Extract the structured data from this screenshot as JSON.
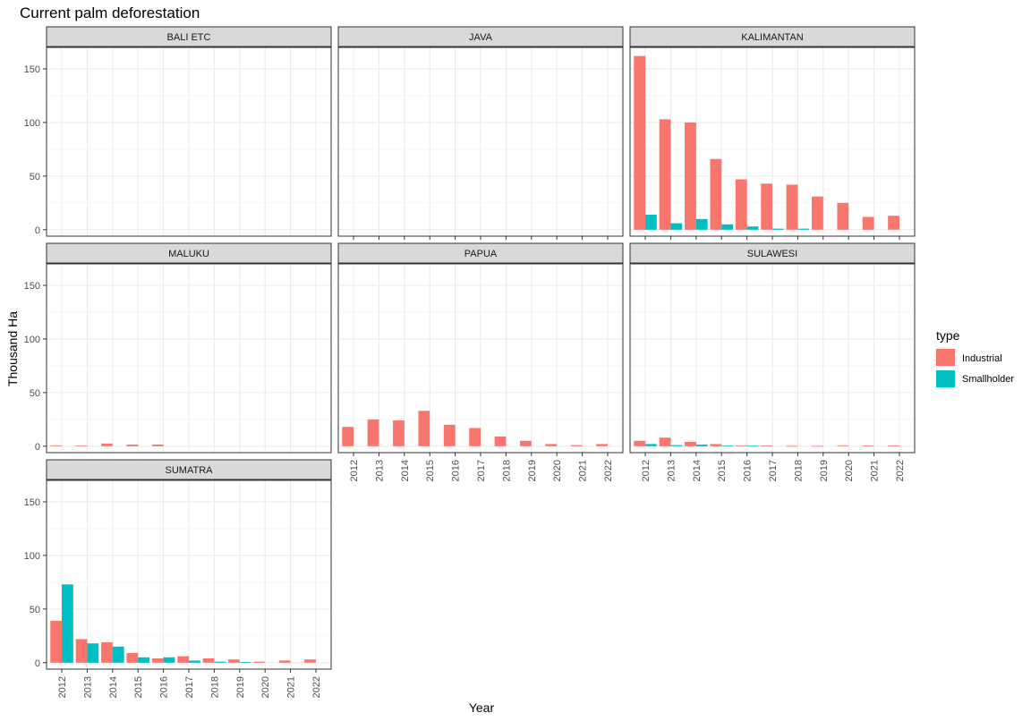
{
  "chart_data": {
    "type": "bar",
    "title": "Current palm deforestation",
    "xlabel": "Year",
    "ylabel": "Thousand Ha",
    "ylim": [
      -6,
      170
    ],
    "yticks": [
      0,
      50,
      100,
      150
    ],
    "x": [
      "2012",
      "2013",
      "2014",
      "2015",
      "2016",
      "2017",
      "2018",
      "2019",
      "2020",
      "2021",
      "2022"
    ],
    "grid": true,
    "legend": {
      "title": "type",
      "position": "right",
      "entries": [
        {
          "name": "Industrial",
          "color": "#F8766D"
        },
        {
          "name": "Smallholder",
          "color": "#00BFC4"
        }
      ]
    },
    "facets": [
      {
        "name": "BALI ETC",
        "series": [
          {
            "name": "Industrial",
            "values": [
              0,
              0,
              0,
              0,
              0,
              0,
              0,
              0,
              0,
              0,
              0
            ]
          },
          {
            "name": "Smallholder",
            "values": [
              0,
              0,
              0,
              0,
              0,
              0,
              0,
              0,
              0,
              0,
              0
            ]
          }
        ]
      },
      {
        "name": "JAVA",
        "series": [
          {
            "name": "Industrial",
            "values": [
              0,
              0,
              0,
              0,
              0,
              0,
              0,
              0,
              0,
              0,
              0
            ]
          },
          {
            "name": "Smallholder",
            "values": [
              0,
              0,
              0,
              0,
              0,
              0,
              0,
              0,
              0,
              0,
              0
            ]
          }
        ]
      },
      {
        "name": "KALIMANTAN",
        "series": [
          {
            "name": "Industrial",
            "values": [
              162,
              103,
              100,
              66,
              47,
              43,
              42,
              31,
              25,
              12,
              13
            ]
          },
          {
            "name": "Smallholder",
            "values": [
              14,
              6,
              10,
              5,
              3,
              1,
              1,
              0,
              0,
              0,
              0
            ]
          }
        ]
      },
      {
        "name": "MALUKU",
        "series": [
          {
            "name": "Industrial",
            "values": [
              0.5,
              0.5,
              2.5,
              1.5,
              1.5,
              0,
              0,
              0,
              0,
              0,
              0
            ]
          },
          {
            "name": "Smallholder",
            "values": [
              0,
              0,
              0,
              0,
              0,
              0,
              0,
              0,
              0,
              0,
              0
            ]
          }
        ]
      },
      {
        "name": "PAPUA",
        "series": [
          {
            "name": "Industrial",
            "values": [
              18,
              25,
              24,
              33,
              20,
              17,
              9,
              5,
              2,
              1,
              2
            ]
          },
          {
            "name": "Smallholder",
            "values": [
              0,
              0,
              0,
              0,
              0,
              0,
              0,
              0,
              0,
              0,
              0
            ]
          }
        ]
      },
      {
        "name": "SULAWESI",
        "series": [
          {
            "name": "Industrial",
            "values": [
              5,
              8,
              4,
              2,
              0.5,
              0.5,
              0.3,
              0.3,
              0.5,
              0.5,
              0.5
            ]
          },
          {
            "name": "Smallholder",
            "values": [
              2,
              1,
              1.5,
              0.5,
              0.5,
              0,
              0,
              0,
              0,
              0,
              0
            ]
          }
        ]
      },
      {
        "name": "SUMATRA",
        "series": [
          {
            "name": "Industrial",
            "values": [
              39,
              22,
              19,
              9,
              4,
              6,
              4,
              3,
              1,
              2,
              3
            ]
          },
          {
            "name": "Smallholder",
            "values": [
              73,
              18,
              15,
              5,
              5,
              2,
              1,
              0.5,
              0,
              0,
              0
            ]
          }
        ]
      }
    ]
  }
}
